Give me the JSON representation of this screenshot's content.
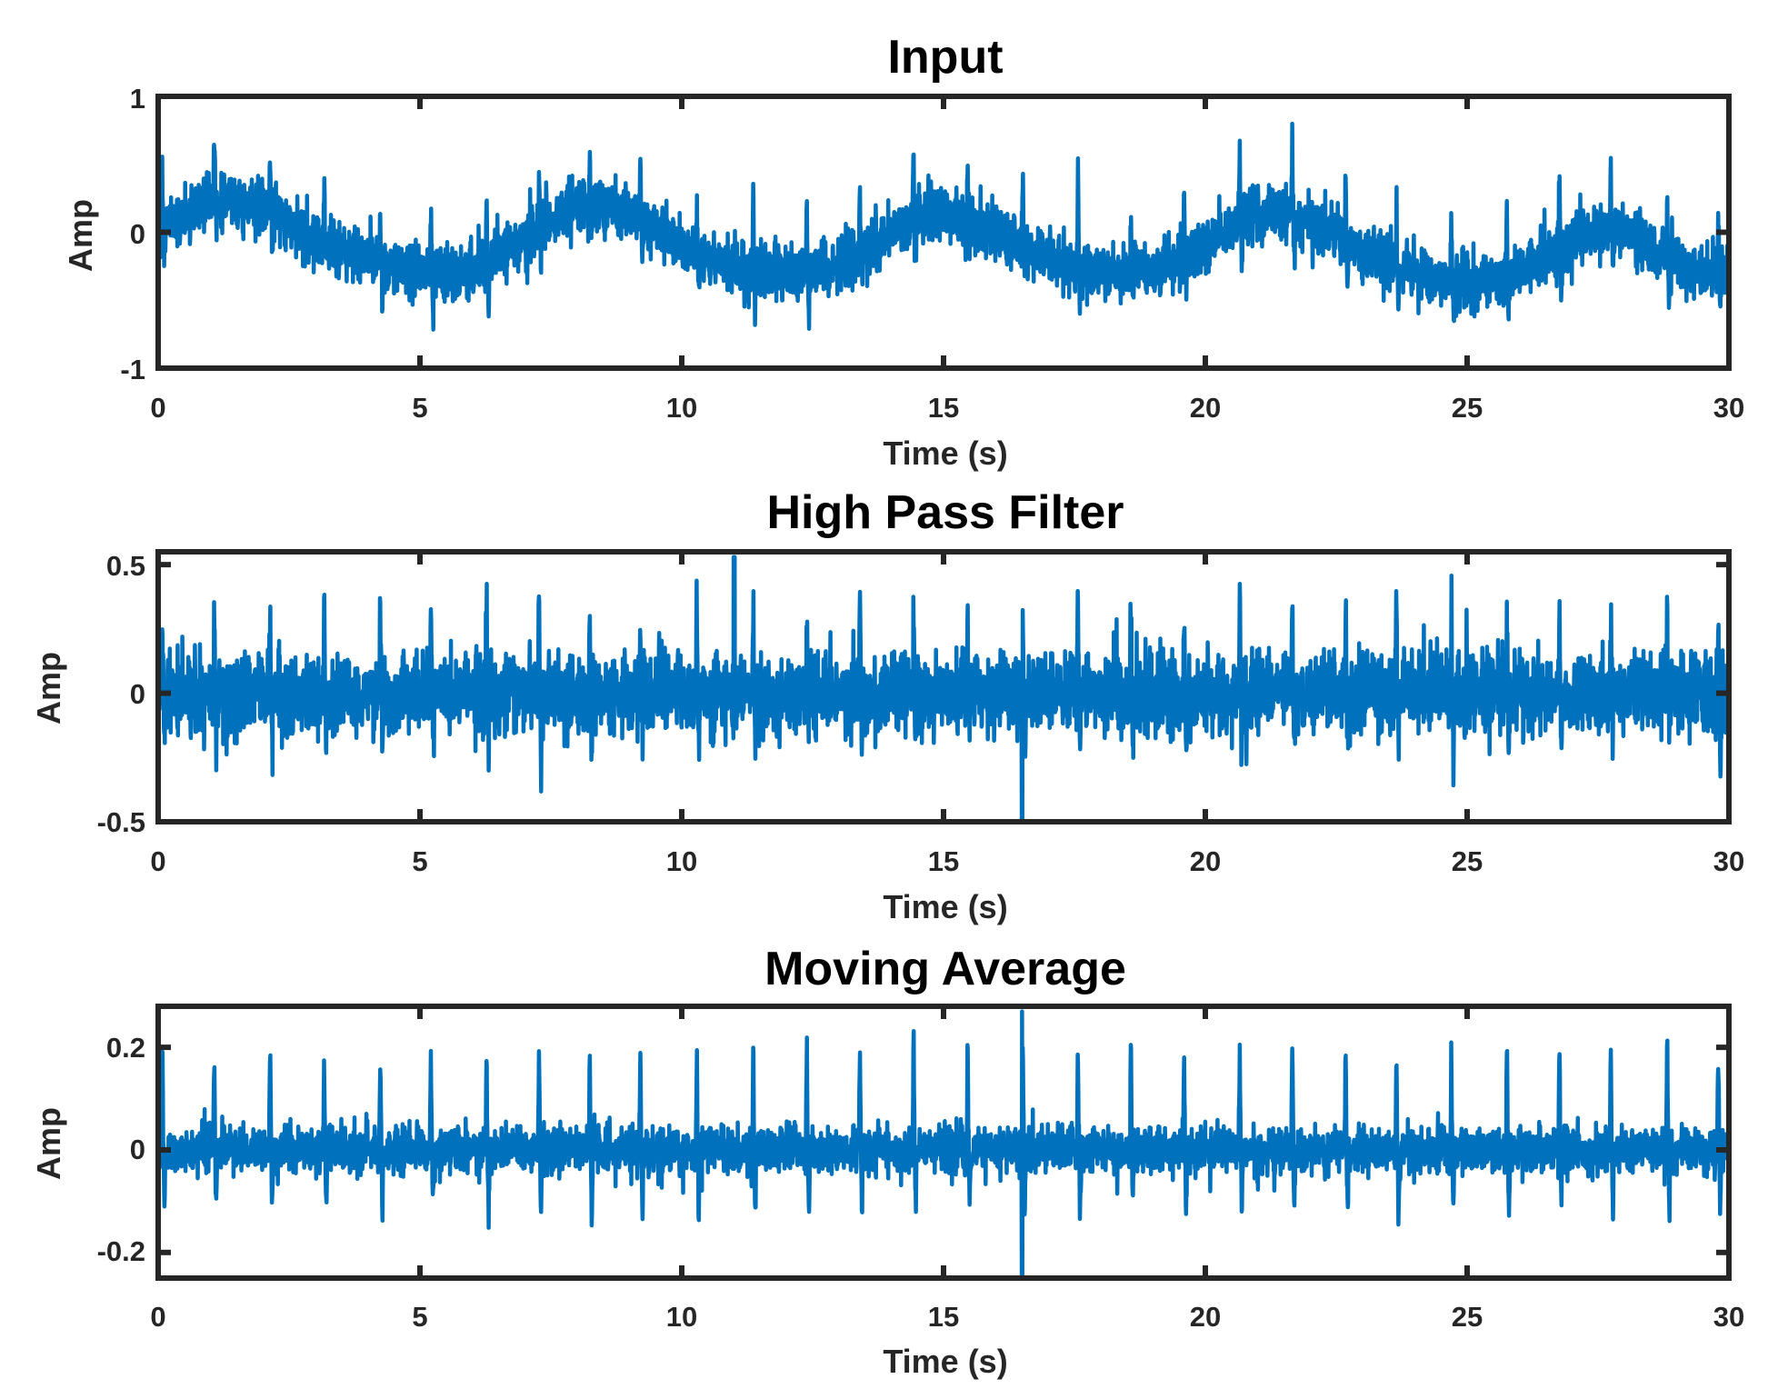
{
  "chart_data": [
    {
      "type": "line",
      "title": "Input",
      "xlabel": "Time (s)",
      "ylabel": "Amp",
      "xlim": [
        0,
        30
      ],
      "ylim": [
        -1,
        1
      ],
      "xticks": [
        "0",
        "5",
        "10",
        "15",
        "20",
        "25",
        "30"
      ],
      "yticks": [
        "-1",
        "0",
        "1"
      ],
      "color": "#0072BD",
      "signal": "Noisy slow sinusoid (period about 6.5 s, baseline about -0.1) with periodic spikes near 1 Hz; values range roughly -0.8 to 0.65",
      "series": [
        {
          "name": "Input",
          "x": [
            0,
            1,
            2,
            3,
            4,
            5,
            6,
            7,
            8,
            9,
            10,
            11,
            12,
            13,
            14,
            15,
            16,
            17,
            18,
            19,
            20,
            21,
            22,
            23,
            24,
            25,
            26,
            27,
            28,
            29,
            30
          ],
          "values": [
            0.0,
            0.25,
            0.2,
            -0.05,
            -0.2,
            -0.3,
            -0.28,
            -0.05,
            0.2,
            0.15,
            -0.1,
            -0.25,
            -0.3,
            -0.25,
            0.0,
            0.15,
            0.0,
            -0.2,
            -0.3,
            -0.3,
            -0.1,
            0.15,
            0.1,
            -0.15,
            -0.3,
            -0.4,
            -0.3,
            -0.05,
            0.05,
            -0.25,
            -0.3
          ]
        }
      ]
    },
    {
      "type": "line",
      "title": "High Pass Filter",
      "xlabel": "Time (s)",
      "ylabel": "Amp",
      "xlim": [
        0,
        30
      ],
      "ylim": [
        -0.5,
        0.55
      ],
      "xticks": [
        "0",
        "5",
        "10",
        "15",
        "20",
        "25",
        "30"
      ],
      "yticks": [
        "-0.5",
        "0",
        "0.5"
      ],
      "color": "#0072BD",
      "signal": "Zero-mean noise, amplitude about 0.15, with spikes near 1 Hz up to about 0.4; peaks near 0.53 at 11 s and -0.5 at 16.5 s",
      "series": [
        {
          "name": "High Pass Filter",
          "x": [
            0,
            11,
            16.5,
            30
          ],
          "values": [
            0.0,
            0.53,
            -0.5,
            0.0
          ]
        }
      ]
    },
    {
      "type": "line",
      "title": "Moving Average",
      "xlabel": "Time (s)",
      "ylabel": "Amp",
      "xlim": [
        0,
        30
      ],
      "ylim": [
        -0.25,
        0.28
      ],
      "xticks": [
        "0",
        "5",
        "10",
        "15",
        "20",
        "25",
        "30"
      ],
      "yticks": [
        "-0.2",
        "0",
        "0.2"
      ],
      "color": "#0072BD",
      "signal": "Low-level noise, amplitude about 0.04, with sharp spikes near 1 Hz reaching about +/-0.2; peaks about 0.27 and -0.25 at 16.5 s",
      "series": [
        {
          "name": "Moving Average",
          "x": [
            0,
            16.5,
            30
          ],
          "values": [
            0.0,
            0.27,
            0.0
          ]
        }
      ]
    }
  ]
}
